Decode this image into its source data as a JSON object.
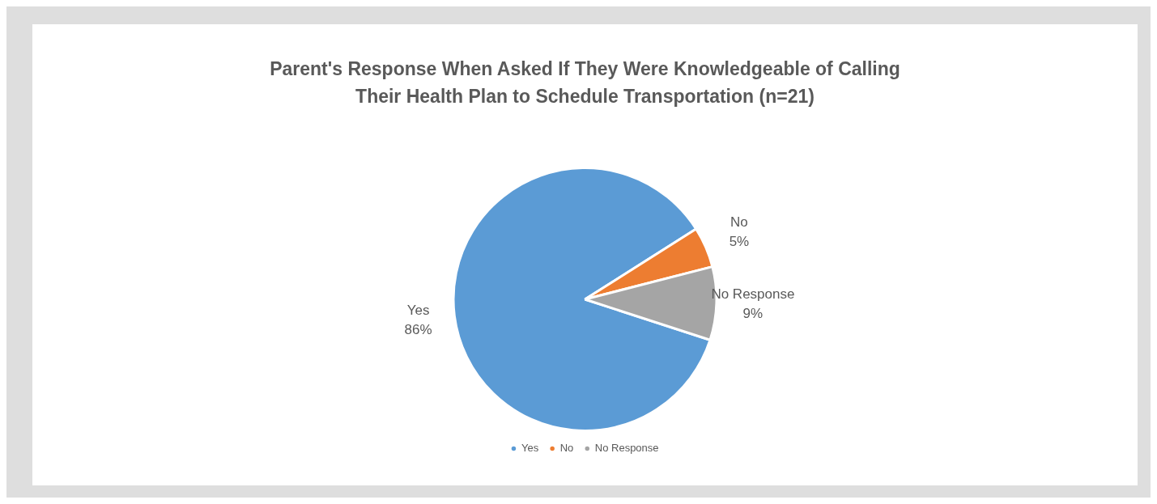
{
  "chart_data": {
    "type": "pie",
    "title": "Parent's Response When Asked If They Were Knowledgeable of Calling Their Health Plan to Schedule Transportation (n=21)",
    "categories": [
      "Yes",
      "No",
      "No Response"
    ],
    "values": [
      86,
      5,
      9
    ],
    "value_labels": [
      "86%",
      "5%",
      "9%"
    ],
    "colors": [
      "#5b9bd5",
      "#ed7d31",
      "#a5a5a5"
    ],
    "legend": "bottom"
  }
}
